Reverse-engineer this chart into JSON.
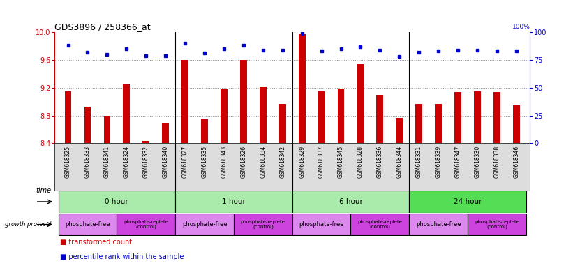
{
  "title": "GDS3896 / 258366_at",
  "samples": [
    "GSM618325",
    "GSM618333",
    "GSM618341",
    "GSM618324",
    "GSM618332",
    "GSM618340",
    "GSM618327",
    "GSM618335",
    "GSM618343",
    "GSM618326",
    "GSM618334",
    "GSM618342",
    "GSM618329",
    "GSM618337",
    "GSM618345",
    "GSM618328",
    "GSM618336",
    "GSM618344",
    "GSM618331",
    "GSM618339",
    "GSM618347",
    "GSM618330",
    "GSM618338",
    "GSM618346"
  ],
  "transformed_count": [
    9.15,
    8.93,
    8.8,
    9.25,
    8.43,
    8.7,
    9.6,
    8.75,
    9.18,
    9.6,
    9.22,
    8.97,
    9.98,
    9.15,
    9.19,
    9.54,
    9.1,
    8.77,
    8.97,
    8.97,
    9.14,
    9.15,
    9.14,
    8.95
  ],
  "percentile_rank": [
    88,
    82,
    80,
    85,
    79,
    79,
    90,
    81,
    85,
    88,
    84,
    84,
    99,
    83,
    85,
    87,
    84,
    78,
    82,
    83,
    84,
    84,
    83,
    83
  ],
  "ylim_left": [
    8.4,
    10.0
  ],
  "ylim_right": [
    0,
    100
  ],
  "yticks_left": [
    8.4,
    8.8,
    9.2,
    9.6,
    10.0
  ],
  "yticks_right": [
    0,
    25,
    50,
    75,
    100
  ],
  "bar_color": "#cc0000",
  "dot_color": "#0000cc",
  "time_labels": [
    "0 hour",
    "1 hour",
    "6 hour",
    "24 hour"
  ],
  "time_starts": [
    0,
    6,
    12,
    18
  ],
  "time_ends": [
    6,
    12,
    18,
    24
  ],
  "time_colors": [
    "#aaeaaa",
    "#aaeaaa",
    "#aaeaaa",
    "#55dd55"
  ],
  "proto_labels": [
    "phosphate-free",
    "phosphate-replete\n(control)",
    "phosphate-free",
    "phosphate-replete\n(control)",
    "phosphate-free",
    "phosphate-replete\n(control)",
    "phosphate-free",
    "phosphate-replete\n(control)"
  ],
  "proto_starts": [
    0,
    3,
    6,
    9,
    12,
    15,
    18,
    21
  ],
  "proto_ends": [
    3,
    6,
    9,
    12,
    15,
    18,
    21,
    24
  ],
  "proto_colors": [
    "#dd88ee",
    "#cc44dd",
    "#dd88ee",
    "#cc44dd",
    "#dd88ee",
    "#cc44dd",
    "#dd88ee",
    "#cc44dd"
  ],
  "bg_color": "#ffffff",
  "label_bg": "#dddddd",
  "grid_color": "#888888"
}
